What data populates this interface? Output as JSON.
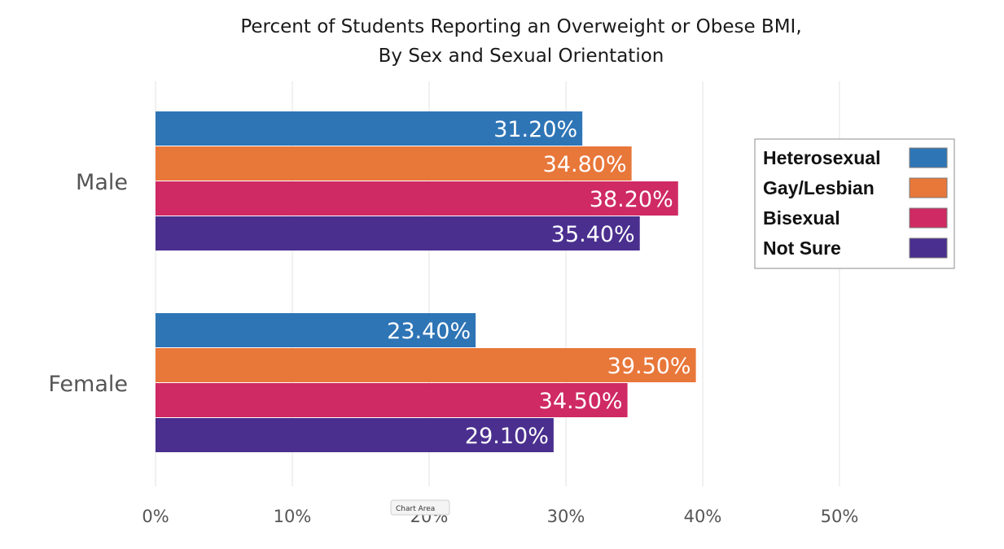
{
  "chart_data": {
    "type": "bar",
    "orientation": "horizontal",
    "title": [
      "Percent of Students Reporting an Overweight or Obese BMI,",
      "By Sex and Sexual Orientation"
    ],
    "categories": [
      "Male",
      "Female"
    ],
    "series": [
      {
        "name": "Heterosexual",
        "color": "#2e75b6",
        "values": [
          31.2,
          23.4
        ],
        "labels": [
          "31.20%",
          "23.40%"
        ]
      },
      {
        "name": "Gay/Lesbian",
        "color": "#e8773a",
        "values": [
          34.8,
          39.5
        ],
        "labels": [
          "34.80%",
          "39.50%"
        ]
      },
      {
        "name": "Bisexual",
        "color": "#cf2a63",
        "values": [
          38.2,
          34.5
        ],
        "labels": [
          "38.20%",
          "34.50%"
        ]
      },
      {
        "name": "Not Sure",
        "color": "#4a2f8f",
        "values": [
          35.4,
          29.1
        ],
        "labels": [
          "35.40%",
          "29.10%"
        ]
      }
    ],
    "xlim": [
      0,
      50
    ],
    "xticks": [
      0,
      10,
      20,
      30,
      40,
      50
    ],
    "xtick_labels": [
      "0%",
      "10%",
      "20%",
      "30%",
      "40%",
      "50%"
    ],
    "grid": true,
    "legend_position": "right",
    "xlabel": "",
    "ylabel": ""
  },
  "tooltip": {
    "text": "Chart Area"
  }
}
